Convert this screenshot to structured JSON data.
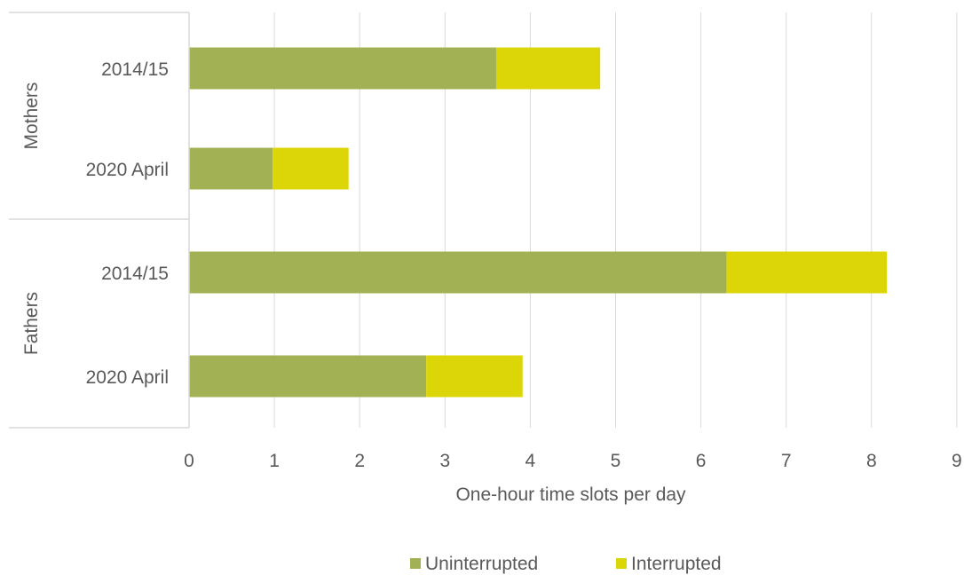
{
  "chart_data": {
    "type": "bar",
    "orientation": "horizontal",
    "stacked": true,
    "title": "",
    "xlabel": "One-hour time slots per day",
    "ylabel": "",
    "xlim": [
      0,
      9
    ],
    "x_ticks": [
      "0",
      "1",
      "2",
      "3",
      "4",
      "5",
      "6",
      "7",
      "8",
      "9"
    ],
    "grid": true,
    "legend_position": "bottom",
    "groups": [
      {
        "label": "Mothers",
        "categories": [
          "2014/15",
          "2020 April"
        ]
      },
      {
        "label": "Fathers",
        "categories": [
          "2014/15",
          "2020 April"
        ]
      }
    ],
    "series": [
      {
        "name": "Uninterrupted",
        "color": "#a3b155",
        "values": [
          3.6,
          0.98,
          6.3,
          2.78
        ]
      },
      {
        "name": "Interrupted",
        "color": "#dcd508",
        "values": [
          1.22,
          0.89,
          1.88,
          1.13
        ]
      }
    ]
  }
}
